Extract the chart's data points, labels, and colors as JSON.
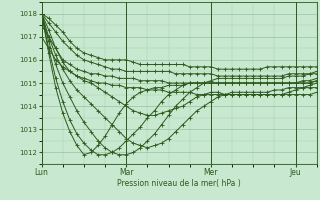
{
  "xlabel": "Pression niveau de la mer( hPa )",
  "bg_color": "#c8e8d0",
  "plot_bg_color": "#c8e8d0",
  "grid_color": "#88bb99",
  "line_color": "#2d5a1b",
  "marker_color": "#2d5a1b",
  "ylim": [
    1011.5,
    1018.5
  ],
  "yticks": [
    1012,
    1013,
    1014,
    1015,
    1016,
    1017,
    1018
  ],
  "day_ticks": [
    0,
    96,
    192,
    288
  ],
  "day_labels": [
    "Lun",
    "Mar",
    "Mer",
    "Jeu"
  ],
  "xlim": [
    0,
    312
  ],
  "members": [
    [
      1018.0,
      1017.8,
      1017.5,
      1017.2,
      1016.8,
      1016.5,
      1016.3,
      1016.2,
      1016.1,
      1016.0,
      1016.0,
      1016.0,
      1016.0,
      1015.9,
      1015.8,
      1015.8,
      1015.8,
      1015.8,
      1015.8,
      1015.8,
      1015.8,
      1015.7,
      1015.7,
      1015.7,
      1015.7,
      1015.6,
      1015.6,
      1015.6,
      1015.6,
      1015.6,
      1015.6,
      1015.6,
      1015.7,
      1015.7,
      1015.7,
      1015.7,
      1015.7,
      1015.7,
      1015.7,
      1015.7
    ],
    [
      1018.0,
      1017.6,
      1017.2,
      1016.8,
      1016.5,
      1016.2,
      1016.0,
      1015.9,
      1015.8,
      1015.7,
      1015.6,
      1015.6,
      1015.5,
      1015.5,
      1015.5,
      1015.5,
      1015.5,
      1015.5,
      1015.5,
      1015.4,
      1015.4,
      1015.4,
      1015.4,
      1015.4,
      1015.4,
      1015.3,
      1015.3,
      1015.3,
      1015.3,
      1015.3,
      1015.3,
      1015.3,
      1015.3,
      1015.3,
      1015.3,
      1015.4,
      1015.4,
      1015.4,
      1015.4,
      1015.4
    ],
    [
      1017.5,
      1017.0,
      1016.5,
      1016.0,
      1015.8,
      1015.6,
      1015.5,
      1015.4,
      1015.4,
      1015.3,
      1015.3,
      1015.2,
      1015.2,
      1015.2,
      1015.1,
      1015.1,
      1015.1,
      1015.1,
      1015.0,
      1015.0,
      1015.0,
      1015.0,
      1015.0,
      1015.0,
      1015.0,
      1015.0,
      1015.0,
      1015.0,
      1015.0,
      1015.0,
      1015.0,
      1015.0,
      1015.0,
      1015.0,
      1015.0,
      1015.0,
      1015.0,
      1015.0,
      1015.0,
      1015.1
    ],
    [
      1017.0,
      1016.5,
      1016.0,
      1015.7,
      1015.5,
      1015.3,
      1015.2,
      1015.1,
      1015.0,
      1015.0,
      1014.9,
      1014.9,
      1014.8,
      1014.8,
      1014.8,
      1014.7,
      1014.7,
      1014.7,
      1014.6,
      1014.6,
      1014.6,
      1014.6,
      1014.5,
      1014.5,
      1014.5,
      1014.5,
      1014.5,
      1014.5,
      1014.5,
      1014.5,
      1014.5,
      1014.5,
      1014.5,
      1014.5,
      1014.5,
      1014.5,
      1014.5,
      1014.5,
      1014.5,
      1014.6
    ],
    [
      1018.0,
      1017.3,
      1016.5,
      1015.9,
      1015.5,
      1015.3,
      1015.1,
      1015.0,
      1014.8,
      1014.6,
      1014.4,
      1014.2,
      1014.0,
      1013.8,
      1013.7,
      1013.6,
      1013.6,
      1013.7,
      1013.8,
      1013.9,
      1014.0,
      1014.2,
      1014.4,
      1014.5,
      1014.6,
      1014.6,
      1014.5,
      1014.5,
      1014.5,
      1014.5,
      1014.5,
      1014.5,
      1014.5,
      1014.5,
      1014.5,
      1014.6,
      1014.7,
      1014.8,
      1014.8,
      1014.8
    ],
    [
      1018.0,
      1017.0,
      1016.2,
      1015.6,
      1015.1,
      1014.7,
      1014.4,
      1014.1,
      1013.8,
      1013.5,
      1013.2,
      1012.9,
      1012.6,
      1012.4,
      1012.3,
      1012.2,
      1012.3,
      1012.4,
      1012.6,
      1012.9,
      1013.2,
      1013.5,
      1013.8,
      1014.0,
      1014.2,
      1014.4,
      1014.5,
      1014.6,
      1014.6,
      1014.6,
      1014.6,
      1014.6,
      1014.6,
      1014.7,
      1014.7,
      1014.8,
      1014.8,
      1014.8,
      1014.9,
      1015.0
    ],
    [
      1018.0,
      1016.8,
      1015.8,
      1015.0,
      1014.4,
      1013.8,
      1013.3,
      1012.9,
      1012.5,
      1012.2,
      1012.0,
      1011.9,
      1011.9,
      1012.0,
      1012.2,
      1012.5,
      1012.8,
      1013.2,
      1013.6,
      1014.0,
      1014.3,
      1014.6,
      1014.8,
      1015.0,
      1015.1,
      1015.2,
      1015.2,
      1015.2,
      1015.2,
      1015.2,
      1015.2,
      1015.2,
      1015.2,
      1015.2,
      1015.2,
      1015.3,
      1015.3,
      1015.3,
      1015.4,
      1015.5
    ],
    [
      1018.0,
      1016.5,
      1015.2,
      1014.2,
      1013.4,
      1012.8,
      1012.4,
      1012.1,
      1011.9,
      1011.9,
      1012.0,
      1012.2,
      1012.5,
      1012.8,
      1013.1,
      1013.5,
      1013.8,
      1014.2,
      1014.5,
      1014.7,
      1014.9,
      1015.0,
      1015.0,
      1015.0,
      1015.0,
      1015.0,
      1015.0,
      1015.0,
      1015.0,
      1015.0,
      1015.0,
      1015.0,
      1015.0,
      1015.0,
      1015.0,
      1015.0,
      1015.0,
      1015.1,
      1015.1,
      1015.2
    ],
    [
      1018.0,
      1016.3,
      1014.8,
      1013.7,
      1012.9,
      1012.3,
      1011.9,
      1012.0,
      1012.3,
      1012.7,
      1013.2,
      1013.7,
      1014.1,
      1014.4,
      1014.6,
      1014.7,
      1014.8,
      1014.8,
      1014.9,
      1014.9,
      1014.9,
      1015.0,
      1015.0,
      1015.0,
      1015.0,
      1015.0,
      1015.0,
      1015.0,
      1015.0,
      1015.0,
      1015.0,
      1015.0,
      1015.0,
      1015.0,
      1015.0,
      1015.0,
      1015.0,
      1015.0,
      1015.0,
      1015.1
    ]
  ]
}
